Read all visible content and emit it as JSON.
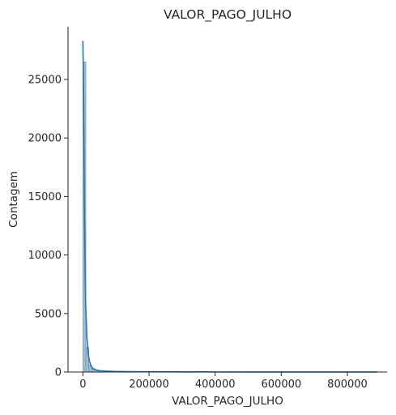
{
  "chart_data": {
    "type": "histogram",
    "title": "VALOR_PAGO_JULHO",
    "xlabel": "VALOR_PAGO_JULHO",
    "ylabel": "Contagem",
    "xlim": [
      -45000,
      920000
    ],
    "ylim": [
      0,
      29500
    ],
    "xticks": [
      0,
      200000,
      400000,
      600000,
      800000
    ],
    "xtick_labels": [
      "0",
      "200000",
      "400000",
      "600000",
      "800000"
    ],
    "yticks": [
      0,
      5000,
      10000,
      15000,
      20000,
      25000
    ],
    "ytick_labels": [
      "0",
      "5000",
      "10000",
      "15000",
      "20000",
      "25000"
    ],
    "bins": [
      {
        "x0": 0,
        "x1": 9000,
        "count": 26500
      },
      {
        "x0": 9000,
        "x1": 18000,
        "count": 2100
      },
      {
        "x0": 18000,
        "x1": 27000,
        "count": 600
      },
      {
        "x0": 27000,
        "x1": 36000,
        "count": 300
      },
      {
        "x0": 36000,
        "x1": 45000,
        "count": 170
      },
      {
        "x0": 45000,
        "x1": 54000,
        "count": 110
      },
      {
        "x0": 54000,
        "x1": 63000,
        "count": 80
      },
      {
        "x0": 63000,
        "x1": 72000,
        "count": 60
      },
      {
        "x0": 72000,
        "x1": 81000,
        "count": 45
      },
      {
        "x0": 81000,
        "x1": 90000,
        "count": 35
      },
      {
        "x0": 90000,
        "x1": 99000,
        "count": 28
      },
      {
        "x0": 99000,
        "x1": 108000,
        "count": 22
      },
      {
        "x0": 108000,
        "x1": 117000,
        "count": 18
      },
      {
        "x0": 117000,
        "x1": 126000,
        "count": 15
      },
      {
        "x0": 126000,
        "x1": 135000,
        "count": 12
      },
      {
        "x0": 135000,
        "x1": 144000,
        "count": 10
      }
    ],
    "kde": {
      "x": [
        0,
        2000,
        5000,
        8000,
        12000,
        16000,
        20000,
        25000,
        30000,
        40000,
        50000,
        70000,
        100000,
        150000,
        200000,
        300000,
        400000,
        500000,
        600000,
        700000,
        800000,
        890000
      ],
      "y": [
        28300,
        24000,
        13000,
        6000,
        3000,
        1600,
        900,
        500,
        300,
        180,
        120,
        80,
        50,
        30,
        20,
        12,
        9,
        7,
        6,
        5,
        4,
        3
      ]
    },
    "colors": {
      "bar_fill": "#a5bccf",
      "bar_edge": "#6f8fa8",
      "kde_line": "#1f77b4",
      "axis": "#262626"
    },
    "grid": false,
    "legend": false
  }
}
